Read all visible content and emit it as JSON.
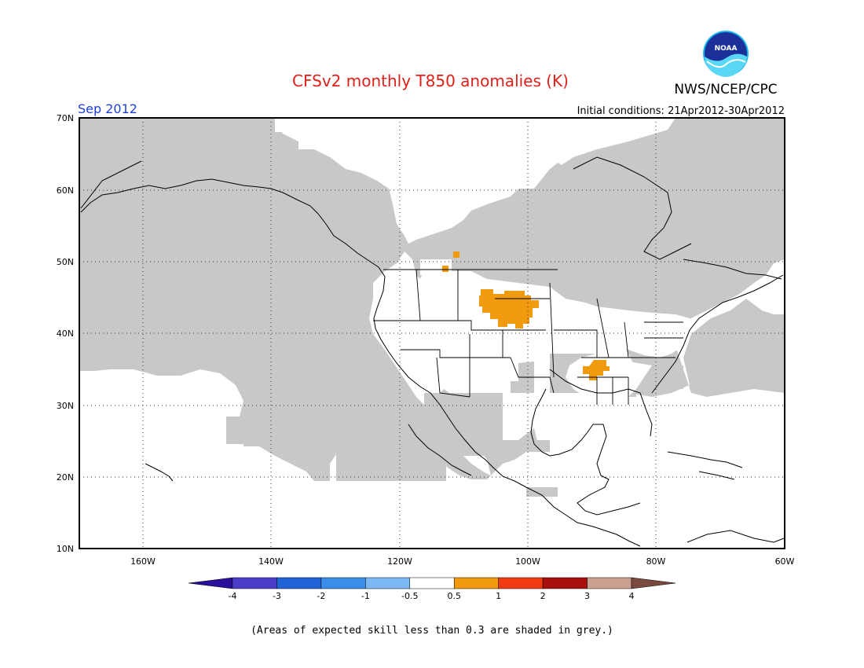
{
  "header": {
    "title": "CFSv2 monthly T850 anomalies (K)",
    "org": "NWS/NCEP/CPC",
    "logo_text": "NOAA",
    "month": "Sep 2012",
    "initial_conditions": "Initial conditions: 21Apr2012-30Apr2012"
  },
  "axes": {
    "lat_labels": [
      "70N",
      "60N",
      "50N",
      "40N",
      "30N",
      "20N",
      "10N"
    ],
    "lon_labels": [
      "160W",
      "140W",
      "120W",
      "100W",
      "80W",
      "60W"
    ]
  },
  "colorbar": {
    "labels": [
      "-4",
      "-3",
      "-2",
      "-1",
      "-0.5",
      "0.5",
      "1",
      "2",
      "3",
      "4"
    ],
    "colors": [
      "#2a0f9a",
      "#4a3ec8",
      "#1f63d6",
      "#3b8ee8",
      "#7cb8f4",
      "#ffffff",
      "#f29a0d",
      "#f23a12",
      "#a90f0f",
      "#caa090",
      "#7a4a3e"
    ]
  },
  "footnote": "(Areas of expected skill less than 0.3 are shaded in grey.)",
  "legend_colors": {
    "low_skill_grey": "#c8c8c8",
    "anomaly_orange": "#f29a0d"
  }
}
